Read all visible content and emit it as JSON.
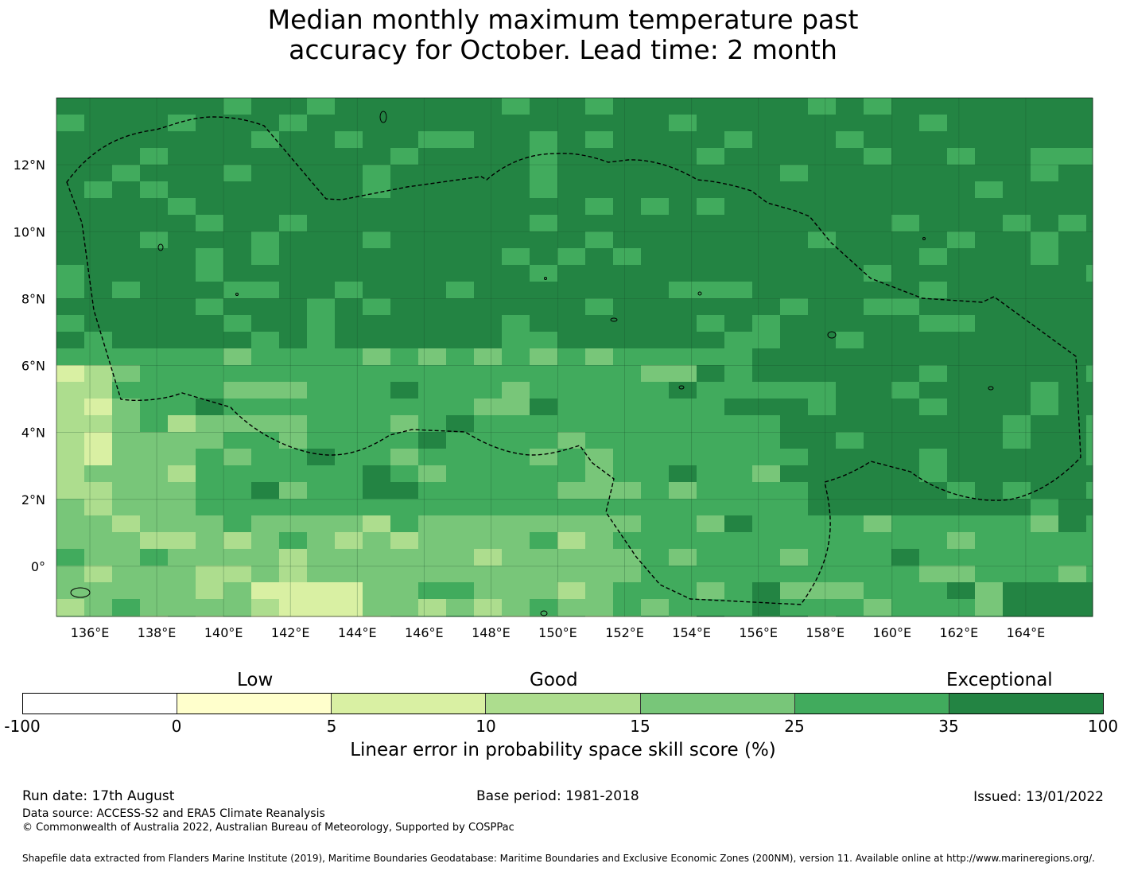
{
  "title_line1": "Median monthly maximum temperature past",
  "title_line2": "accuracy for October. Lead time: 2 month",
  "map": {
    "lon_labels": [
      "136°E",
      "138°E",
      "140°E",
      "142°E",
      "144°E",
      "146°E",
      "148°E",
      "150°E",
      "152°E",
      "154°E",
      "156°E",
      "158°E",
      "160°E",
      "162°E",
      "164°E"
    ],
    "lat_labels": [
      "12°N",
      "10°N",
      "8°N",
      "6°N",
      "4°N",
      "2°N",
      "0°"
    ],
    "lon_range": [
      135.0,
      166.0
    ],
    "lat_range": [
      -1.5,
      14.0
    ]
  },
  "legend": {
    "categories": [
      "Low",
      "Good",
      "Exceptional"
    ],
    "ticks": [
      "-100",
      "0",
      "5",
      "10",
      "15",
      "25",
      "35",
      "100"
    ],
    "colors": [
      "#ffffff",
      "#ffffcc",
      "#d9f0a3",
      "#addd8e",
      "#78c679",
      "#41ab5d",
      "#238443"
    ],
    "label": "Linear error in probability space skill score (%)"
  },
  "footer": {
    "run_date": "Run date: 17th August",
    "base_period": "Base period: 1981-2018",
    "issued": "Issued: 13/01/2022",
    "data_source": "Data source: ACCESS-S2 and ERA5 Climate Reanalysis",
    "copyright": "© Commonwealth of Australia 2022, Australian Bureau of Meteorology, Supported by COSPPac",
    "shapefile": "Shapefile data extracted from Flanders Marine Institute (2019), Maritime Boundaries Geodatabase: Maritime Boundaries and Exclusive Economic Zones (200NM), version 11. Available online at http://www.marineregions.org/."
  }
}
